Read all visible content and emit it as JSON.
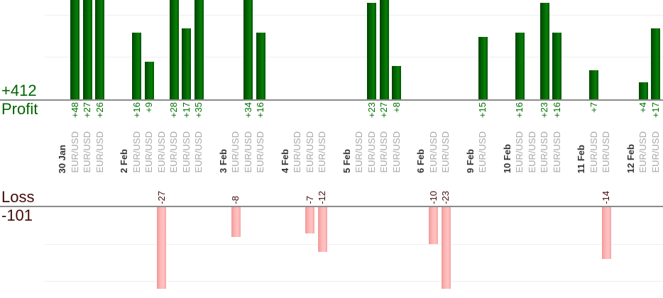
{
  "chart_data": {
    "type": "bar",
    "instrument": "EUR/USD",
    "profit_section": {
      "name_label": "Profit",
      "total_label": "+412",
      "total": 412,
      "text_color": "#006400",
      "bar_color": "#046a04",
      "gridline_step": 10,
      "visible_value_range": [
        0,
        24
      ],
      "note": "bars above 24 are clipped at the top edge"
    },
    "loss_section": {
      "name_label": "Loss",
      "total_label": "-101",
      "total": -101,
      "text_color": "#420a0a",
      "bar_color": "#ffb9b9",
      "gridline_step": 10,
      "visible_value_range": [
        0,
        -22
      ],
      "note": "bars below -22 are clipped at the bottom edge"
    },
    "x_groups": [
      {
        "date": "30 Jan",
        "trades": [
          {
            "symbol": "EUR/USD",
            "value": 48,
            "label": "+48"
          },
          {
            "symbol": "EUR/USD",
            "value": 27,
            "label": "+27"
          },
          {
            "symbol": "EUR/USD",
            "value": 26,
            "label": "+26"
          }
        ]
      },
      {
        "date": "2 Feb",
        "trades": [
          {
            "symbol": "EUR/USD",
            "value": 16,
            "label": "+16"
          },
          {
            "symbol": "EUR/USD",
            "value": 9,
            "label": "+9"
          },
          {
            "symbol": "EUR/USD",
            "value": -27,
            "label": "-27"
          },
          {
            "symbol": "EUR/USD",
            "value": 28,
            "label": "+28"
          },
          {
            "symbol": "EUR/USD",
            "value": 17,
            "label": "+17"
          },
          {
            "symbol": "EUR/USD",
            "value": 35,
            "label": "+35"
          }
        ]
      },
      {
        "date": "3 Feb",
        "trades": [
          {
            "symbol": "EUR/USD",
            "value": -8,
            "label": "-8"
          },
          {
            "symbol": "EUR/USD",
            "value": 34,
            "label": "+34"
          },
          {
            "symbol": "EUR/USD",
            "value": 16,
            "label": "+16"
          }
        ]
      },
      {
        "date": "4 Feb",
        "trades": [
          {
            "symbol": "EUR/USD",
            "value": 0,
            "label": ""
          },
          {
            "symbol": "EUR/USD",
            "value": -7,
            "label": "-7"
          },
          {
            "symbol": "EUR/USD",
            "value": -12,
            "label": "-12"
          }
        ]
      },
      {
        "date": "5 Feb",
        "trades": [
          {
            "symbol": "EUR/USD",
            "value": 0,
            "label": ""
          },
          {
            "symbol": "EUR/USD",
            "value": 23,
            "label": "+23"
          },
          {
            "symbol": "EUR/USD",
            "value": 27,
            "label": "+27"
          },
          {
            "symbol": "EUR/USD",
            "value": 8,
            "label": "+8"
          }
        ]
      },
      {
        "date": "6 Feb",
        "trades": [
          {
            "symbol": "EUR/USD",
            "value": -10,
            "label": "-10"
          },
          {
            "symbol": "EUR/USD",
            "value": -23,
            "label": "-23"
          }
        ]
      },
      {
        "date": "9 Feb",
        "trades": [
          {
            "symbol": "EUR/USD",
            "value": 15,
            "label": "+15"
          }
        ]
      },
      {
        "date": "10 Feb",
        "trades": [
          {
            "symbol": "EUR/USD",
            "value": 16,
            "label": "+16"
          },
          {
            "symbol": "EUR/USD",
            "value": 0,
            "label": ""
          },
          {
            "symbol": "EUR/USD",
            "value": 23,
            "label": "+23"
          },
          {
            "symbol": "EUR/USD",
            "value": 16,
            "label": "+16"
          }
        ]
      },
      {
        "date": "11 Feb",
        "trades": [
          {
            "symbol": "EUR/USD",
            "value": 7,
            "label": "+7"
          },
          {
            "symbol": "EUR/USD",
            "value": -14,
            "label": "-14"
          }
        ]
      },
      {
        "date": "12 Feb",
        "trades": [
          {
            "symbol": "EUR/USD",
            "value": 4,
            "label": "+4"
          },
          {
            "symbol": "EUR/USD",
            "value": 17,
            "label": "+17"
          }
        ]
      }
    ]
  }
}
